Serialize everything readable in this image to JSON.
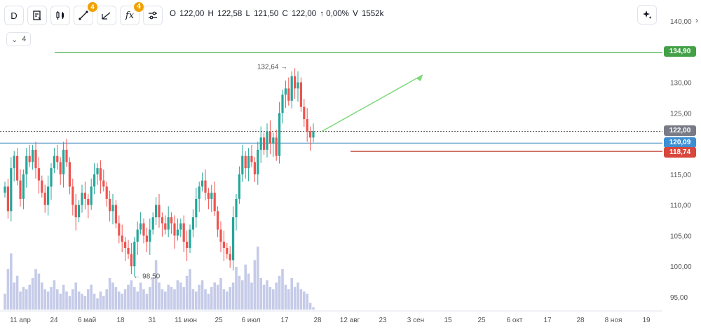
{
  "toolbar": {
    "interval_label": "D",
    "draw_badge": "4",
    "indicators_badge": "4",
    "fx_label": "fx"
  },
  "ohlc": {
    "o_label": "O",
    "o_value": "122,00",
    "h_label": "H",
    "h_value": "122,58",
    "l_label": "L",
    "l_value": "121,50",
    "c_label": "C",
    "c_value": "122,00",
    "change": "↑ 0,00%",
    "v_label": "V",
    "v_value": "1552k"
  },
  "indicator_toggle": {
    "count": "4"
  },
  "colors": {
    "up": "#26a69a",
    "down": "#ef5350",
    "volume": "#c5cbe8",
    "green_line": "#4caf50",
    "blue_line": "#4a90c2",
    "red_line": "#c0392b",
    "current_price_tag": "#787b86",
    "arrow": "#7ed87a"
  },
  "chart_data": {
    "type": "candlestick",
    "ylim": [
      94,
      142
    ],
    "y_ticks": [
      "140,00",
      "135,00",
      "130,00",
      "125,00",
      "120,00",
      "115,00",
      "110,00",
      "105,00",
      "100,00",
      "95,00"
    ],
    "x_ticks": [
      "11 апр",
      "24",
      "6 май",
      "18",
      "31",
      "11 июн",
      "25",
      "6 июл",
      "17",
      "28",
      "12 авг",
      "23",
      "3 сен",
      "15",
      "25",
      "6 окт",
      "17",
      "28",
      "8 ноя",
      "19"
    ],
    "price_labels": {
      "green_level": "134,90",
      "current": "122,00",
      "blue_level": "120,09",
      "red_level": "118,74"
    },
    "levels": {
      "green": 134.9,
      "current": 122.0,
      "blue": 120.09,
      "red": 118.74
    },
    "annotations": {
      "high_label": "132,64",
      "high_value": 132.64,
      "low_label": "98,50",
      "low_value": 98.5
    },
    "closes": [
      113,
      109,
      116,
      118,
      114,
      111,
      115,
      118,
      117,
      119,
      116,
      114,
      112,
      110,
      113,
      116,
      118,
      117,
      115,
      119,
      117,
      113,
      110,
      108,
      110,
      112,
      111,
      110,
      113,
      115,
      116,
      114,
      113,
      111,
      109,
      110,
      107,
      105,
      104,
      103,
      102,
      100,
      104,
      106,
      107,
      105,
      104,
      106,
      108,
      110,
      108,
      107,
      106,
      108,
      107,
      105,
      106,
      107,
      104,
      103,
      106,
      108,
      111,
      113,
      114,
      112,
      111,
      112,
      109,
      106,
      104,
      103,
      102,
      101,
      108,
      111,
      115,
      118,
      116,
      118,
      117,
      115,
      119,
      121,
      119,
      122,
      120,
      121,
      118,
      125,
      128,
      129,
      127,
      131,
      129,
      130,
      126,
      124,
      122,
      121,
      122
    ],
    "volume": [
      7,
      18,
      25,
      12,
      15,
      8,
      10,
      9,
      11,
      14,
      18,
      16,
      12,
      9,
      8,
      10,
      13,
      9,
      7,
      11,
      8,
      6,
      9,
      12,
      8,
      7,
      6,
      9,
      11,
      7,
      5,
      8,
      6,
      9,
      14,
      12,
      10,
      8,
      7,
      9,
      11,
      13,
      10,
      8,
      12,
      9,
      7,
      10,
      14,
      22,
      12,
      9,
      8,
      11,
      10,
      9,
      13,
      12,
      10,
      15,
      18,
      9,
      8,
      11,
      13,
      9,
      7,
      10,
      12,
      11,
      14,
      9,
      8,
      10,
      12,
      19,
      15,
      13,
      20,
      16,
      12,
      22,
      28,
      14,
      11,
      13,
      10,
      9,
      12,
      15,
      18,
      11,
      9,
      14,
      10,
      12,
      9,
      8,
      7,
      3,
      1
    ]
  }
}
